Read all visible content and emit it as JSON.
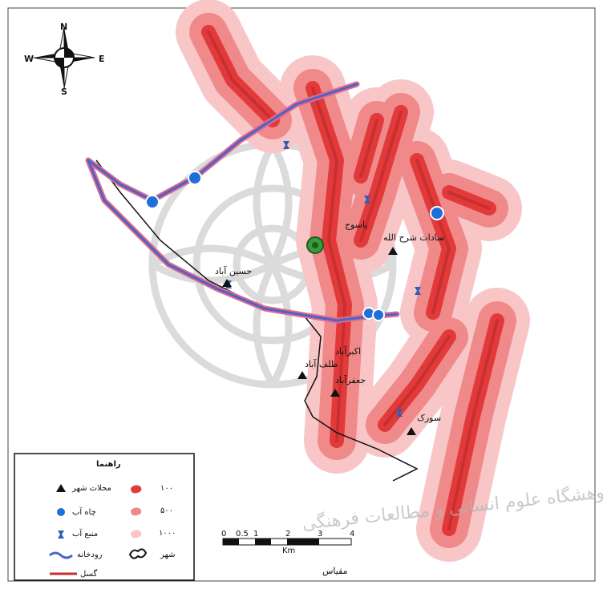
{
  "compass": {
    "north": "N",
    "south": "S",
    "east": "E",
    "west": "W"
  },
  "places": {
    "yasuj": "یاسوج",
    "sadat_mahmoudi": "سادات شرح الله",
    "hossein_abad": "حسین آباد",
    "akbar_abad": "اکبرآباد",
    "talaf_abad": "طلف آباد",
    "jafar_abad": "جعفرآباد",
    "sourak": "سورک"
  },
  "legend": {
    "title": "راهنما",
    "items": {
      "neighborhoods": "محلات شهر",
      "well": "چاه آب",
      "spring": "منبع آب",
      "river": "رودخانه",
      "city": "شهر",
      "fault": "گسل",
      "buf100": "۱۰۰",
      "buf500": "۵۰۰",
      "buf1000": "۱۰۰۰"
    }
  },
  "scale": {
    "title": "مقیاس",
    "ticks": [
      "0",
      "0.5",
      "1",
      "2",
      "3",
      "4"
    ],
    "unit": "Km"
  },
  "watermark": "پژوهشگاه علوم انسانی و مطالعات فرهنگی",
  "colors": {
    "buffer_outer": "#f8c6c6",
    "buffer_mid": "#f08a8a",
    "buffer_inner": "#e23a3a",
    "fault": "#c92f2f",
    "river": "#4b63c8",
    "river_glow": "#e06a8a",
    "well": "#1f6fd8",
    "spring": "#2a5fb8"
  }
}
